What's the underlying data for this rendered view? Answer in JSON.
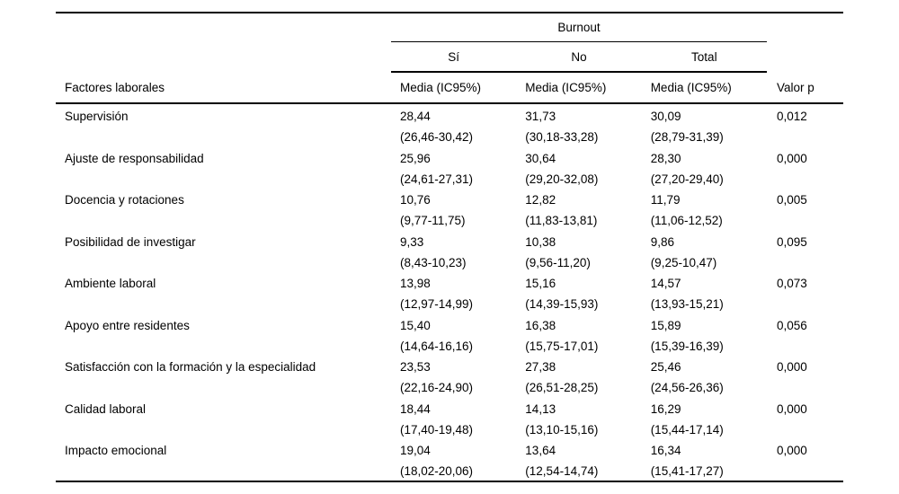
{
  "table": {
    "group_header": "Burnout",
    "subcolumns": [
      "Sí",
      "No",
      "Total"
    ],
    "row_header": "Factores laborales",
    "media_label": "Media (IC95%)",
    "p_header": "Valor p",
    "rows": [
      {
        "label": "Supervisión",
        "si_mean": "28,44",
        "si_ci": "(26,46-30,42)",
        "no_mean": "31,73",
        "no_ci": "(30,18-33,28)",
        "total_mean": "30,09",
        "total_ci": "(28,79-31,39)",
        "p": "0,012"
      },
      {
        "label": "Ajuste de responsabilidad",
        "si_mean": "25,96",
        "si_ci": "(24,61-27,31)",
        "no_mean": "30,64",
        "no_ci": "(29,20-32,08)",
        "total_mean": "28,30",
        "total_ci": "(27,20-29,40)",
        "p": "0,000"
      },
      {
        "label": "Docencia y rotaciones",
        "si_mean": "10,76",
        "si_ci": "(9,77-11,75)",
        "no_mean": "12,82",
        "no_ci": "(11,83-13,81)",
        "total_mean": "11,79",
        "total_ci": "(11,06-12,52)",
        "p": "0,005"
      },
      {
        "label": "Posibilidad de investigar",
        "si_mean": "9,33",
        "si_ci": "(8,43-10,23)",
        "no_mean": "10,38",
        "no_ci": "(9,56-11,20)",
        "total_mean": "9,86",
        "total_ci": "(9,25-10,47)",
        "p": "0,095"
      },
      {
        "label": "Ambiente laboral",
        "si_mean": "13,98",
        "si_ci": "(12,97-14,99)",
        "no_mean": "15,16",
        "no_ci": "(14,39-15,93)",
        "total_mean": "14,57",
        "total_ci": "(13,93-15,21)",
        "p": "0,073"
      },
      {
        "label": "Apoyo entre residentes",
        "si_mean": "15,40",
        "si_ci": "(14,64-16,16)",
        "no_mean": "16,38",
        "no_ci": "(15,75-17,01)",
        "total_mean": "15,89",
        "total_ci": "(15,39-16,39)",
        "p": "0,056"
      },
      {
        "label": "Satisfacción con la formación y la especialidad",
        "si_mean": "23,53",
        "si_ci": "(22,16-24,90)",
        "no_mean": "27,38",
        "no_ci": "(26,51-28,25)",
        "total_mean": "25,46",
        "total_ci": "(24,56-26,36)",
        "p": "0,000"
      },
      {
        "label": "Calidad laboral",
        "si_mean": "18,44",
        "si_ci": "(17,40-19,48)",
        "no_mean": "14,13",
        "no_ci": "(13,10-15,16)",
        "total_mean": "16,29",
        "total_ci": "(15,44-17,14)",
        "p": "0,000"
      },
      {
        "label": "Impacto emocional",
        "si_mean": "19,04",
        "si_ci": "(18,02-20,06)",
        "no_mean": "13,64",
        "no_ci": "(12,54-14,74)",
        "total_mean": "16,34",
        "total_ci": "(15,41-17,27)",
        "p": "0,000"
      }
    ]
  },
  "colors": {
    "text": "#000000",
    "background": "#ffffff",
    "rule": "#000000"
  }
}
